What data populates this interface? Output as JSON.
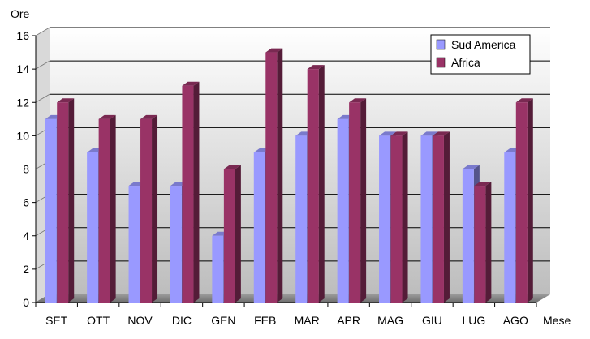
{
  "chart_data": {
    "type": "bar",
    "title": "",
    "xlabel": "Mese",
    "ylabel": "Ore",
    "ylim": [
      0,
      16
    ],
    "yticks": [
      0,
      2,
      4,
      6,
      8,
      10,
      12,
      14,
      16
    ],
    "grid": true,
    "legend_position": "top-right",
    "categories": [
      "SET",
      "OTT",
      "NOV",
      "DIC",
      "GEN",
      "FEB",
      "MAR",
      "APR",
      "MAG",
      "GIU",
      "LUG",
      "AGO"
    ],
    "series": [
      {
        "name": "Sud America",
        "color": "#9999ff",
        "values": [
          11,
          9,
          7,
          7,
          4,
          9,
          10,
          11,
          10,
          10,
          8,
          9
        ]
      },
      {
        "name": "Africa",
        "color": "#993366",
        "values": [
          12,
          11,
          11,
          13,
          8,
          15,
          14,
          12,
          10,
          10,
          7,
          12
        ]
      }
    ]
  }
}
